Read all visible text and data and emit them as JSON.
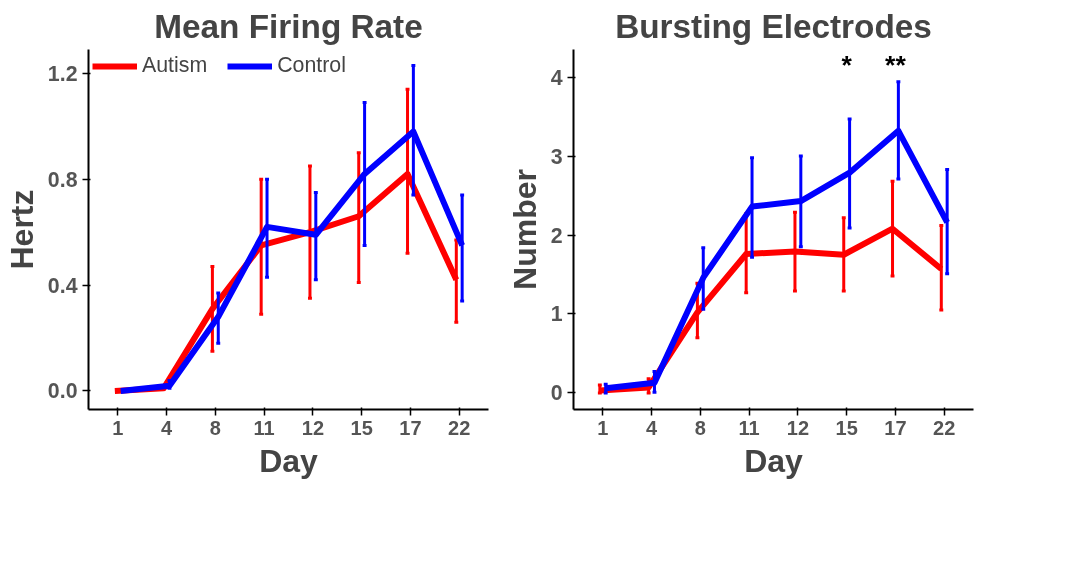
{
  "chart_data": [
    {
      "type": "line",
      "title": "Mean Firing Rate",
      "xlabel": "Day",
      "ylabel": "Hertz",
      "categories": [
        "1",
        "4",
        "8",
        "11",
        "12",
        "15",
        "17",
        "22"
      ],
      "ylim": [
        -0.07,
        1.29
      ],
      "yticks": [
        {
          "value": 0,
          "label": "0.0"
        },
        0.4,
        0.8,
        1.2
      ],
      "grid": false,
      "legend": "top left",
      "marker": "none",
      "line_style": "solid",
      "series": [
        {
          "name": "Autism",
          "color": "#ff0000",
          "values": [
            0.0,
            0.01,
            0.31,
            0.55,
            0.6,
            0.66,
            0.82,
            0.42
          ],
          "errors": [
            null,
            null,
            [
              0.15,
              0.47
            ],
            [
              0.29,
              0.8
            ],
            [
              0.35,
              0.85
            ],
            [
              0.41,
              0.9
            ],
            [
              0.52,
              1.14
            ],
            [
              0.26,
              0.57
            ]
          ]
        },
        {
          "name": "Control",
          "color": "#0000ff",
          "values": [
            0.0,
            0.02,
            0.28,
            0.62,
            0.59,
            0.82,
            0.98,
            0.55
          ],
          "errors": [
            null,
            [
              0.01,
              0.04
            ],
            [
              0.18,
              0.37
            ],
            [
              0.43,
              0.8
            ],
            [
              0.42,
              0.75
            ],
            [
              0.55,
              1.09
            ],
            [
              0.74,
              1.23
            ],
            [
              0.34,
              0.74
            ]
          ]
        }
      ]
    },
    {
      "type": "line",
      "title": "Bursting Electrodes",
      "xlabel": "Day",
      "ylabel": "Number",
      "categories": [
        "1",
        "4",
        "8",
        "11",
        "12",
        "15",
        "17",
        "22"
      ],
      "ylim": [
        -0.21,
        4.35
      ],
      "yticks": [
        0,
        1,
        2,
        3,
        4
      ],
      "grid": false,
      "marker": "none",
      "line_style": "solid",
      "annotations": [
        "*",
        "**"
      ],
      "series": [
        {
          "color": "#ff0000",
          "values": [
            0.03,
            0.07,
            1.02,
            1.76,
            1.79,
            1.75,
            2.08,
            1.57
          ],
          "errors": [
            [
              0.0,
              0.1
            ],
            [
              0.0,
              0.18
            ],
            [
              0.7,
              1.39
            ],
            [
              1.27,
              2.27
            ],
            [
              1.29,
              2.29
            ],
            [
              1.29,
              2.22
            ],
            [
              1.48,
              2.68
            ],
            [
              1.05,
              2.12
            ]
          ]
        },
        {
          "color": "#0000ff",
          "values": [
            0.06,
            0.13,
            1.46,
            2.36,
            2.43,
            2.79,
            3.32,
            2.16
          ],
          "errors": [
            [
              0.0,
              0.11
            ],
            [
              0.01,
              0.27
            ],
            [
              1.06,
              1.84
            ],
            [
              1.72,
              2.98
            ],
            [
              1.85,
              3.0
            ],
            [
              2.09,
              3.47
            ],
            [
              2.71,
              3.94
            ],
            [
              1.51,
              2.83
            ]
          ]
        }
      ]
    }
  ]
}
